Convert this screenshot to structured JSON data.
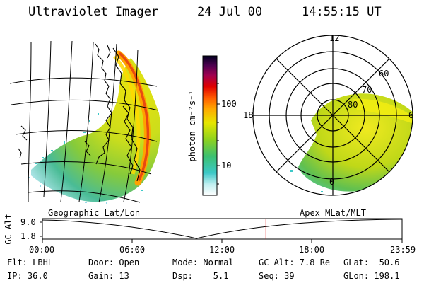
{
  "header": {
    "title": "Ultraviolet Imager",
    "date": "24 Jul 00",
    "time": "14:55:15 UT"
  },
  "colorbar": {
    "label": "photon cm⁻²s⁻¹",
    "ticks": [
      "100",
      "10"
    ]
  },
  "polar": {
    "mlt_labels": [
      "12",
      "18",
      "6",
      "0"
    ],
    "lat_labels": [
      "60",
      "70",
      "80"
    ]
  },
  "map_labels": {
    "left": "Geographic Lat/Lon",
    "right": "Apex MLat/MLT"
  },
  "timeline": {
    "ylabel": "GC Alt",
    "ymax": "9.0",
    "ymin": "1.8",
    "ticks": [
      "00:00",
      "06:00",
      "12:00",
      "18:00",
      "23:59"
    ],
    "current_time": "14:55",
    "marker_color": "#e00000"
  },
  "footer": {
    "flt": "Flt: LBHL",
    "door": "Door: Open",
    "mode": "Mode: Normal",
    "gcalt": "GC Alt: 7.8 Re",
    "glat": "GLat:  50.6",
    "ip": "IP: 36.0",
    "gain": "Gain: 13",
    "dsp": "Dsp:    5.1",
    "seq": "Seq: 39",
    "glon": "GLon: 198.1"
  }
}
